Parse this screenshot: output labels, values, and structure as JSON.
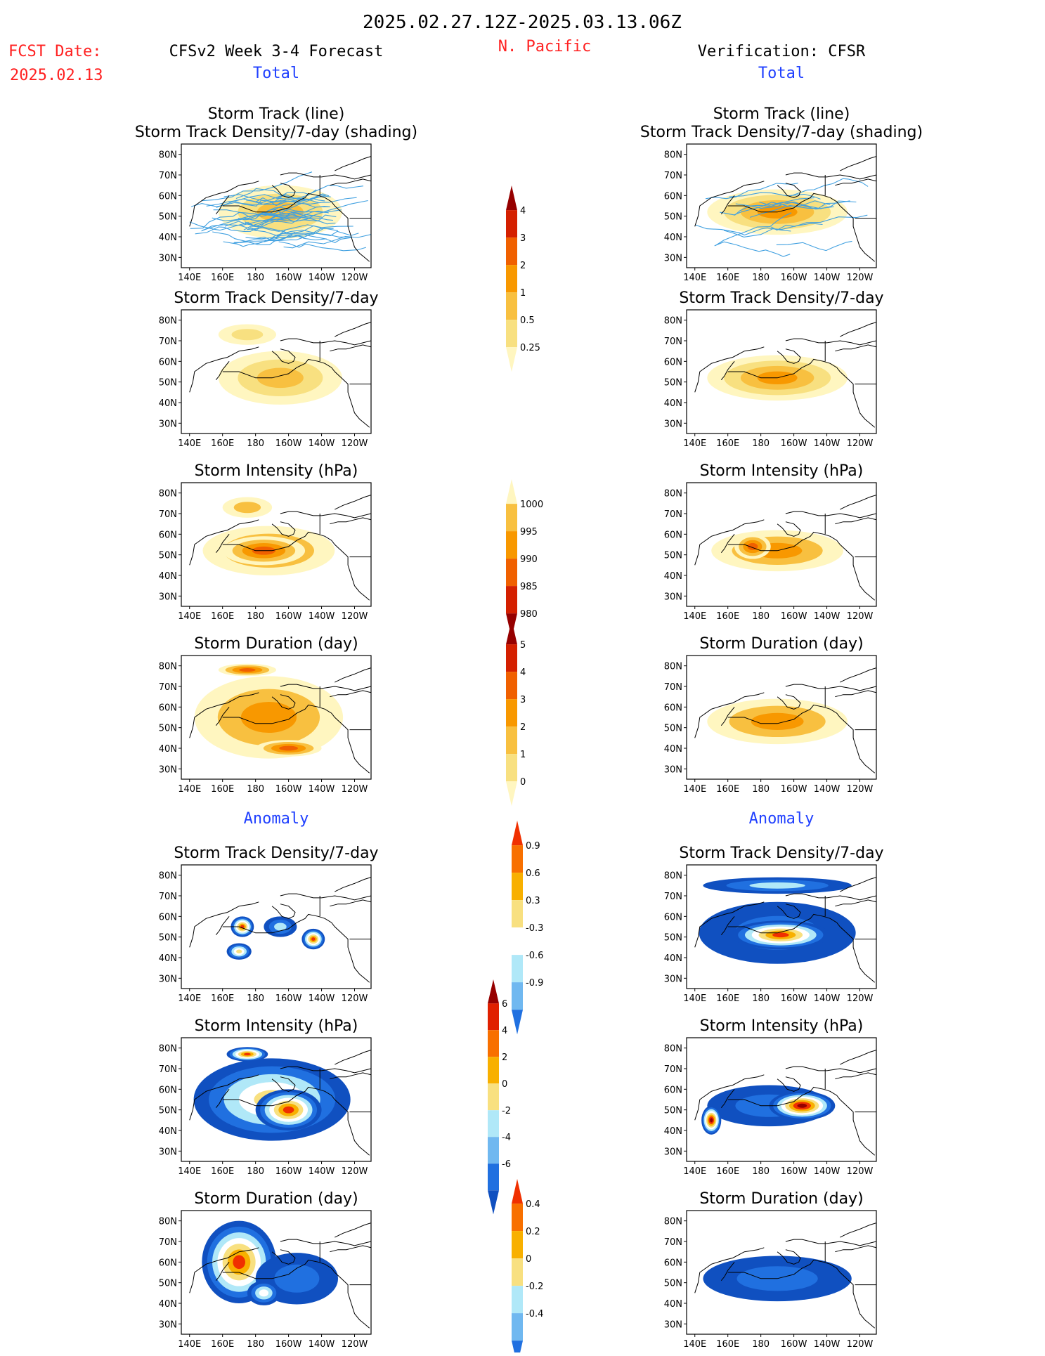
{
  "header": {
    "date_range": "2025.02.27.12Z-2025.03.13.06Z",
    "fcst_label": "FCST Date:",
    "fcst_date": "2025.02.13",
    "model": "CFSv2 Week 3-4 Forecast",
    "region": "N. Pacific",
    "verification": "Verification: CFSR",
    "total_left": "Total",
    "total_right": "Total",
    "anomaly_left": "Anomaly",
    "anomaly_right": "Anomaly"
  },
  "colors": {
    "title": "#000000",
    "red_text": "#ff2020",
    "blue_text": "#2040ff",
    "track_line": "#40a0e0",
    "map_line": "#000000"
  },
  "chart_data": [
    {
      "type": "heatmap",
      "id": "fc-track",
      "title": [
        "Storm Track (line)",
        "Storm Track Density/7-day (shading)"
      ],
      "lat_ticks": [
        "80N",
        "70N",
        "60N",
        "50N",
        "40N",
        "30N"
      ],
      "lon_ticks": [
        "140E",
        "160E",
        "180",
        "160W",
        "140W",
        "120W"
      ],
      "colorbar": "density",
      "tracks": true,
      "blobs": [
        {
          "lon": 175,
          "lat": 54,
          "w": 30,
          "h": 14,
          "level": 5
        },
        {
          "lon": 215,
          "lat": 53,
          "w": 22,
          "h": 12,
          "level": 5
        },
        {
          "lon": 195,
          "lat": 52,
          "w": 75,
          "h": 26,
          "level": 2
        }
      ]
    },
    {
      "type": "heatmap",
      "id": "obs-track",
      "title": [
        "Storm Track (line)",
        "Storm Track Density/7-day (shading)"
      ],
      "lat_ticks": [
        "80N",
        "70N",
        "60N",
        "50N",
        "40N",
        "30N"
      ],
      "lon_ticks": [
        "140E",
        "160E",
        "180",
        "160W",
        "140W",
        "120W"
      ],
      "colorbar": "density",
      "tracks": true,
      "blobs": [
        {
          "lon": 192,
          "lat": 55,
          "w": 60,
          "h": 14,
          "level": 5
        },
        {
          "lon": 190,
          "lat": 52,
          "w": 85,
          "h": 22,
          "level": 3
        }
      ]
    },
    {
      "type": "heatmap",
      "id": "fc-density",
      "title": [
        "Storm Track Density/7-day"
      ],
      "lat_ticks": [
        "80N",
        "70N",
        "60N",
        "50N",
        "40N",
        "30N"
      ],
      "lon_ticks": [
        "140E",
        "160E",
        "180",
        "160W",
        "140W",
        "120W"
      ],
      "colorbar": "density",
      "tracks": false,
      "blobs": [
        {
          "lon": 175,
          "lat": 54,
          "w": 28,
          "h": 13,
          "level": 5
        },
        {
          "lon": 215,
          "lat": 53,
          "w": 20,
          "h": 11,
          "level": 5
        },
        {
          "lon": 195,
          "lat": 52,
          "w": 75,
          "h": 26,
          "level": 2
        },
        {
          "lon": 175,
          "lat": 73,
          "w": 35,
          "h": 10,
          "level": 1
        }
      ]
    },
    {
      "type": "heatmap",
      "id": "obs-density",
      "title": [
        "Storm Track Density/7-day"
      ],
      "lat_ticks": [
        "80N",
        "70N",
        "60N",
        "50N",
        "40N",
        "30N"
      ],
      "lon_ticks": [
        "140E",
        "160E",
        "180",
        "160W",
        "140W",
        "120W"
      ],
      "colorbar": "density",
      "tracks": false,
      "blobs": [
        {
          "lon": 192,
          "lat": 55,
          "w": 60,
          "h": 14,
          "level": 5
        },
        {
          "lon": 190,
          "lat": 52,
          "w": 85,
          "h": 22,
          "level": 3
        }
      ]
    },
    {
      "type": "heatmap",
      "id": "fc-intensity",
      "title": [
        "Storm Intensity (hPa)"
      ],
      "lat_ticks": [
        "80N",
        "70N",
        "60N",
        "50N",
        "40N",
        "30N"
      ],
      "lon_ticks": [
        "140E",
        "160E",
        "180",
        "160W",
        "140W",
        "120W"
      ],
      "colorbar": "intensity",
      "tracks": false,
      "blobs": [
        {
          "lon": 188,
          "lat": 52,
          "w": 80,
          "h": 24,
          "level": 2
        },
        {
          "lon": 185,
          "lat": 52,
          "w": 50,
          "h": 14,
          "level": 3
        },
        {
          "lon": 175,
          "lat": 73,
          "w": 30,
          "h": 10,
          "level": 0
        }
      ]
    },
    {
      "type": "heatmap",
      "id": "obs-intensity",
      "title": [
        "Storm Intensity (hPa)"
      ],
      "lat_ticks": [
        "80N",
        "70N",
        "60N",
        "50N",
        "40N",
        "30N"
      ],
      "lon_ticks": [
        "140E",
        "160E",
        "180",
        "160W",
        "140W",
        "120W"
      ],
      "colorbar": "intensity",
      "tracks": false,
      "blobs": [
        {
          "lon": 190,
          "lat": 52,
          "w": 80,
          "h": 20,
          "level": 2
        },
        {
          "lon": 175,
          "lat": 54,
          "w": 22,
          "h": 12,
          "level": 3
        }
      ]
    },
    {
      "type": "heatmap",
      "id": "fc-duration",
      "title": [
        "Storm Duration (day)"
      ],
      "lat_ticks": [
        "80N",
        "70N",
        "60N",
        "50N",
        "40N",
        "30N"
      ],
      "lon_ticks": [
        "140E",
        "160E",
        "180",
        "160W",
        "140W",
        "120W"
      ],
      "colorbar": "duration",
      "tracks": false,
      "blobs": [
        {
          "lon": 188,
          "lat": 55,
          "w": 90,
          "h": 40,
          "level": 2
        },
        {
          "lon": 175,
          "lat": 78,
          "w": 35,
          "h": 6,
          "level": 3
        },
        {
          "lon": 200,
          "lat": 40,
          "w": 40,
          "h": 8,
          "level": 3
        }
      ]
    },
    {
      "type": "heatmap",
      "id": "obs-duration",
      "title": [
        "Storm Duration (day)"
      ],
      "lat_ticks": [
        "80N",
        "70N",
        "60N",
        "50N",
        "40N",
        "30N"
      ],
      "lon_ticks": [
        "140E",
        "160E",
        "180",
        "160W",
        "140W",
        "120W"
      ],
      "colorbar": "duration",
      "tracks": false,
      "blobs": [
        {
          "lon": 190,
          "lat": 53,
          "w": 85,
          "h": 22,
          "level": 2
        }
      ]
    },
    {
      "type": "heatmap",
      "id": "fc-density-anom",
      "title": [
        "Storm Track Density/7-day"
      ],
      "lat_ticks": [
        "80N",
        "70N",
        "60N",
        "50N",
        "40N",
        "30N"
      ],
      "lon_ticks": [
        "140E",
        "160E",
        "180",
        "160W",
        "140W",
        "120W"
      ],
      "colorbar": "anom_density",
      "tracks": false,
      "blobs": [
        {
          "lon": 172,
          "lat": 55,
          "w": 14,
          "h": 10,
          "level": 6
        },
        {
          "lon": 215,
          "lat": 49,
          "w": 14,
          "h": 10,
          "level": 6
        },
        {
          "lon": 195,
          "lat": 55,
          "w": 20,
          "h": 10,
          "level": 2
        },
        {
          "lon": 170,
          "lat": 43,
          "w": 15,
          "h": 8,
          "level": 4
        }
      ]
    },
    {
      "type": "heatmap",
      "id": "obs-density-anom",
      "title": [
        "Storm Track Density/7-day"
      ],
      "lat_ticks": [
        "80N",
        "70N",
        "60N",
        "50N",
        "40N",
        "30N"
      ],
      "lon_ticks": [
        "140E",
        "160E",
        "180",
        "160W",
        "140W",
        "120W"
      ],
      "colorbar": "anom_density",
      "tracks": false,
      "blobs": [
        {
          "lon": 190,
          "lat": 52,
          "w": 95,
          "h": 30,
          "level": 1
        },
        {
          "lon": 192,
          "lat": 51,
          "w": 60,
          "h": 14,
          "level": 6
        },
        {
          "lon": 190,
          "lat": 75,
          "w": 90,
          "h": 8,
          "level": 2
        }
      ]
    },
    {
      "type": "heatmap",
      "id": "fc-intensity-anom",
      "title": [
        "Storm Intensity (hPa)"
      ],
      "lat_ticks": [
        "80N",
        "70N",
        "60N",
        "50N",
        "40N",
        "30N"
      ],
      "lon_ticks": [
        "140E",
        "160E",
        "180",
        "160W",
        "140W",
        "120W"
      ],
      "colorbar": "anom_intensity",
      "tracks": false,
      "blobs": [
        {
          "lon": 190,
          "lat": 55,
          "w": 95,
          "h": 40,
          "level": 4
        },
        {
          "lon": 200,
          "lat": 50,
          "w": 40,
          "h": 20,
          "level": 6
        },
        {
          "lon": 175,
          "lat": 77,
          "w": 25,
          "h": 7,
          "level": 6
        }
      ]
    },
    {
      "type": "heatmap",
      "id": "obs-intensity-anom",
      "title": [
        "Storm Intensity (hPa)"
      ],
      "lat_ticks": [
        "80N",
        "70N",
        "60N",
        "50N",
        "40N",
        "30N"
      ],
      "lon_ticks": [
        "140E",
        "160E",
        "180",
        "160W",
        "140W",
        "120W"
      ],
      "colorbar": "anom_intensity",
      "tracks": false,
      "blobs": [
        {
          "lon": 185,
          "lat": 52,
          "w": 75,
          "h": 20,
          "level": 1
        },
        {
          "lon": 205,
          "lat": 52,
          "w": 40,
          "h": 14,
          "level": 7
        },
        {
          "lon": 150,
          "lat": 45,
          "w": 12,
          "h": 14,
          "level": 7
        }
      ]
    },
    {
      "type": "heatmap",
      "id": "fc-duration-anom",
      "title": [
        "Storm Duration (day)"
      ],
      "lat_ticks": [
        "80N",
        "70N",
        "60N",
        "50N",
        "40N",
        "30N"
      ],
      "lon_ticks": [
        "140E",
        "160E",
        "180",
        "160W",
        "140W",
        "120W"
      ],
      "colorbar": "anom_duration",
      "tracks": false,
      "blobs": [
        {
          "lon": 170,
          "lat": 60,
          "w": 45,
          "h": 40,
          "level": 6
        },
        {
          "lon": 205,
          "lat": 52,
          "w": 50,
          "h": 25,
          "level": 1
        },
        {
          "lon": 185,
          "lat": 45,
          "w": 20,
          "h": 12,
          "level": 3
        }
      ]
    },
    {
      "type": "heatmap",
      "id": "obs-duration-anom",
      "title": [
        "Storm Duration (day)"
      ],
      "lat_ticks": [
        "80N",
        "70N",
        "60N",
        "50N",
        "40N",
        "30N"
      ],
      "lon_ticks": [
        "140E",
        "160E",
        "180",
        "160W",
        "140W",
        "120W"
      ],
      "colorbar": "anom_duration",
      "tracks": false,
      "blobs": [
        {
          "lon": 190,
          "lat": 52,
          "w": 90,
          "h": 22,
          "level": 0
        }
      ]
    }
  ],
  "colorbars": {
    "density": {
      "labels": [
        "4",
        "3",
        "2",
        "1",
        "0.5",
        "0.25"
      ],
      "colors": [
        "#960000",
        "#d42000",
        "#f06000",
        "#f89800",
        "#f8c040",
        "#f8e080",
        "#fff6c0"
      ]
    },
    "intensity": {
      "labels": [
        "1000",
        "995",
        "990",
        "985",
        "980"
      ],
      "colors": [
        "#fff6c0",
        "#f8c040",
        "#f89800",
        "#f06000",
        "#d42000",
        "#960000"
      ]
    },
    "duration": {
      "labels": [
        "5",
        "4",
        "3",
        "2",
        "1",
        "0"
      ],
      "colors": [
        "#960000",
        "#d42000",
        "#f06000",
        "#f89800",
        "#f8c040",
        "#f8e080",
        "#fff6c0"
      ]
    },
    "anom_density": {
      "labels": [
        "0.9",
        "0.6",
        "0.3",
        "-0.3",
        "-0.6",
        "-0.9"
      ],
      "colors": [
        "#f03000",
        "#f87000",
        "#f8b000",
        "#f8e080",
        "#ffffff",
        "#b0e8f8",
        "#70b8f0",
        "#2070e0"
      ]
    },
    "anom_intensity": {
      "labels": [
        "6",
        "4",
        "2",
        "0",
        "-2",
        "-4",
        "-6"
      ],
      "colors": [
        "#960000",
        "#e02000",
        "#f87000",
        "#f8b000",
        "#f8e080",
        "#b0e8f8",
        "#70b8f0",
        "#2070e0",
        "#1050c0"
      ]
    },
    "anom_duration": {
      "labels": [
        "0.4",
        "0.2",
        "0",
        "-0.2",
        "-0.4"
      ],
      "colors": [
        "#f03000",
        "#f87000",
        "#f8b000",
        "#f8e080",
        "#b0e8f8",
        "#70b8f0",
        "#2070e0"
      ]
    }
  },
  "blob_colors": {
    "density": [
      "#fff6c0",
      "#f8e080",
      "#f8c040",
      "#f89800",
      "#f06000",
      "#d42000",
      "#960000"
    ],
    "intensity": [
      "#fff6c0",
      "#f8c040",
      "#f89800",
      "#f06000",
      "#d42000",
      "#960000"
    ],
    "duration": [
      "#fff6c0",
      "#f8c040",
      "#f89800",
      "#f06000",
      "#d42000",
      "#960000"
    ],
    "anom_density": [
      "#1050c0",
      "#2070e0",
      "#b0e8f8",
      "#ffffff",
      "#f8e080",
      "#f8b000",
      "#f03000"
    ],
    "anom_intensity": [
      "#1050c0",
      "#2070e0",
      "#b0e8f8",
      "#ffffff",
      "#f8e080",
      "#f8b000",
      "#f03000",
      "#960000"
    ],
    "anom_duration": [
      "#1050c0",
      "#2070e0",
      "#b0e8f8",
      "#ffffff",
      "#f8e080",
      "#f8b000",
      "#f03000"
    ]
  }
}
